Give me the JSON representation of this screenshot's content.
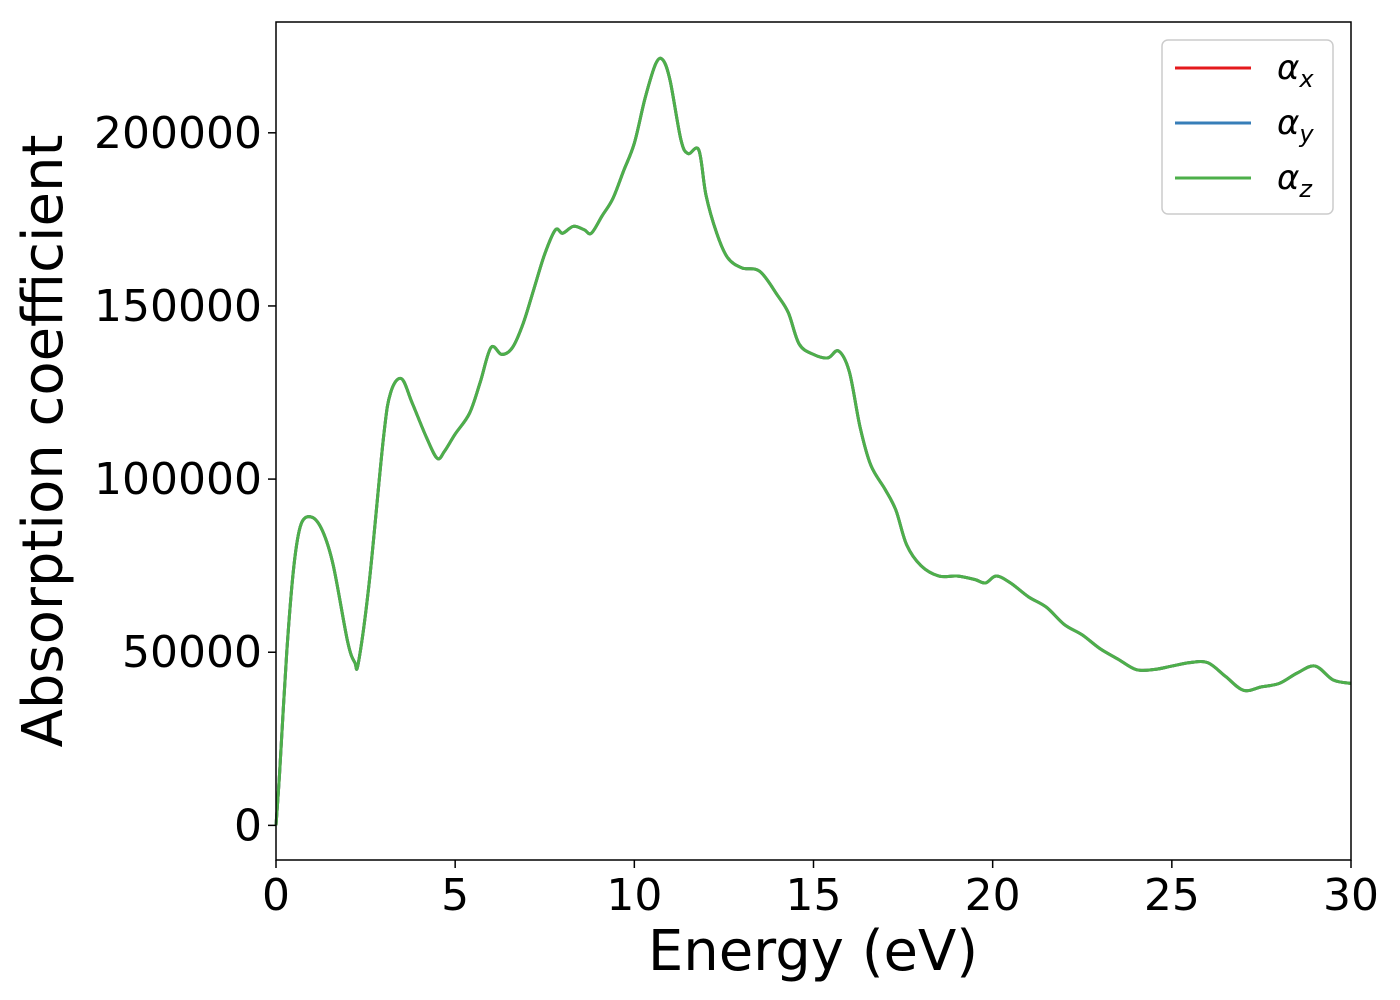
{
  "chart_data": {
    "type": "line",
    "xlabel": "Energy (eV)",
    "ylabel": "Absorption coefficient",
    "xlim": [
      0,
      30
    ],
    "ylim": [
      -10000,
      232000
    ],
    "x_ticks": [
      0,
      5,
      10,
      15,
      20,
      25,
      30
    ],
    "y_ticks": [
      0,
      50000,
      100000,
      150000,
      200000
    ],
    "grid": false,
    "legend_position": "top-right",
    "x": [
      0,
      0.1,
      0.3,
      0.5,
      0.7,
      1.0,
      1.3,
      1.6,
      2.0,
      2.2,
      2.3,
      2.6,
      3.0,
      3.2,
      3.5,
      3.8,
      4.2,
      4.5,
      4.7,
      5.0,
      5.4,
      5.7,
      6.0,
      6.3,
      6.6,
      6.9,
      7.2,
      7.5,
      7.8,
      8.0,
      8.3,
      8.6,
      8.8,
      9.1,
      9.4,
      9.7,
      10.0,
      10.3,
      10.6,
      10.8,
      11.0,
      11.3,
      11.5,
      11.8,
      12.0,
      12.3,
      12.6,
      13.0,
      13.5,
      14.0,
      14.3,
      14.6,
      15.0,
      15.4,
      15.7,
      16.0,
      16.3,
      16.6,
      17.0,
      17.3,
      17.6,
      18.0,
      18.5,
      19.0,
      19.5,
      19.8,
      20.1,
      20.5,
      21.0,
      21.5,
      22.0,
      22.5,
      23.0,
      23.5,
      24.0,
      24.5,
      25.0,
      25.5,
      26.0,
      26.5,
      27.0,
      27.5,
      28.0,
      28.5,
      29.0,
      29.5,
      30.0
    ],
    "series": [
      {
        "name": "α_x",
        "color": "#e41a1c",
        "y": [
          0,
          15000,
          50000,
          75000,
          87000,
          89000,
          85000,
          75000,
          53000,
          47000,
          47000,
          70000,
          112000,
          125000,
          129000,
          122000,
          112000,
          106000,
          108000,
          113000,
          119000,
          128000,
          138000,
          136000,
          138000,
          145000,
          155000,
          165000,
          172000,
          171000,
          173000,
          172000,
          171000,
          176000,
          181000,
          189000,
          197000,
          210000,
          220000,
          221000,
          215000,
          198000,
          194000,
          195000,
          182000,
          171000,
          164000,
          161000,
          160000,
          153000,
          148000,
          139000,
          136000,
          135000,
          137000,
          131000,
          115000,
          104000,
          97000,
          91000,
          81000,
          75000,
          72000,
          72000,
          71000,
          70000,
          72000,
          70000,
          66000,
          63000,
          58000,
          55000,
          51000,
          48000,
          45000,
          45000,
          46000,
          47000,
          47000,
          43000,
          39000,
          40000,
          41000,
          44000,
          46000,
          42000,
          41000
        ]
      },
      {
        "name": "α_y",
        "color": "#377eb8",
        "y": [
          0,
          15000,
          50000,
          75000,
          87000,
          89000,
          85000,
          75000,
          53000,
          47000,
          47000,
          70000,
          112000,
          125000,
          129000,
          122000,
          112000,
          106000,
          108000,
          113000,
          119000,
          128000,
          138000,
          136000,
          138000,
          145000,
          155000,
          165000,
          172000,
          171000,
          173000,
          172000,
          171000,
          176000,
          181000,
          189000,
          197000,
          210000,
          220000,
          221000,
          215000,
          198000,
          194000,
          195000,
          182000,
          171000,
          164000,
          161000,
          160000,
          153000,
          148000,
          139000,
          136000,
          135000,
          137000,
          131000,
          115000,
          104000,
          97000,
          91000,
          81000,
          75000,
          72000,
          72000,
          71000,
          70000,
          72000,
          70000,
          66000,
          63000,
          58000,
          55000,
          51000,
          48000,
          45000,
          45000,
          46000,
          47000,
          47000,
          43000,
          39000,
          40000,
          41000,
          44000,
          46000,
          42000,
          41000
        ]
      },
      {
        "name": "α_z",
        "color": "#4daf4a",
        "y": [
          0,
          15000,
          50000,
          75000,
          87000,
          89000,
          85000,
          75000,
          53000,
          47000,
          47000,
          70000,
          112000,
          125000,
          129000,
          122000,
          112000,
          106000,
          108000,
          113000,
          119000,
          128000,
          138000,
          136000,
          138000,
          145000,
          155000,
          165000,
          172000,
          171000,
          173000,
          172000,
          171000,
          176000,
          181000,
          189000,
          197000,
          210000,
          220000,
          221000,
          215000,
          198000,
          194000,
          195000,
          182000,
          171000,
          164000,
          161000,
          160000,
          153000,
          148000,
          139000,
          136000,
          135000,
          137000,
          131000,
          115000,
          104000,
          97000,
          91000,
          81000,
          75000,
          72000,
          72000,
          71000,
          70000,
          72000,
          70000,
          66000,
          63000,
          58000,
          55000,
          51000,
          48000,
          45000,
          45000,
          46000,
          47000,
          47000,
          43000,
          39000,
          40000,
          41000,
          44000,
          46000,
          42000,
          41000
        ]
      }
    ],
    "legend": [
      {
        "symbol": "α",
        "subscript": "x",
        "color": "#e41a1c"
      },
      {
        "symbol": "α",
        "subscript": "y",
        "color": "#377eb8"
      },
      {
        "symbol": "α",
        "subscript": "z",
        "color": "#4daf4a"
      }
    ]
  }
}
